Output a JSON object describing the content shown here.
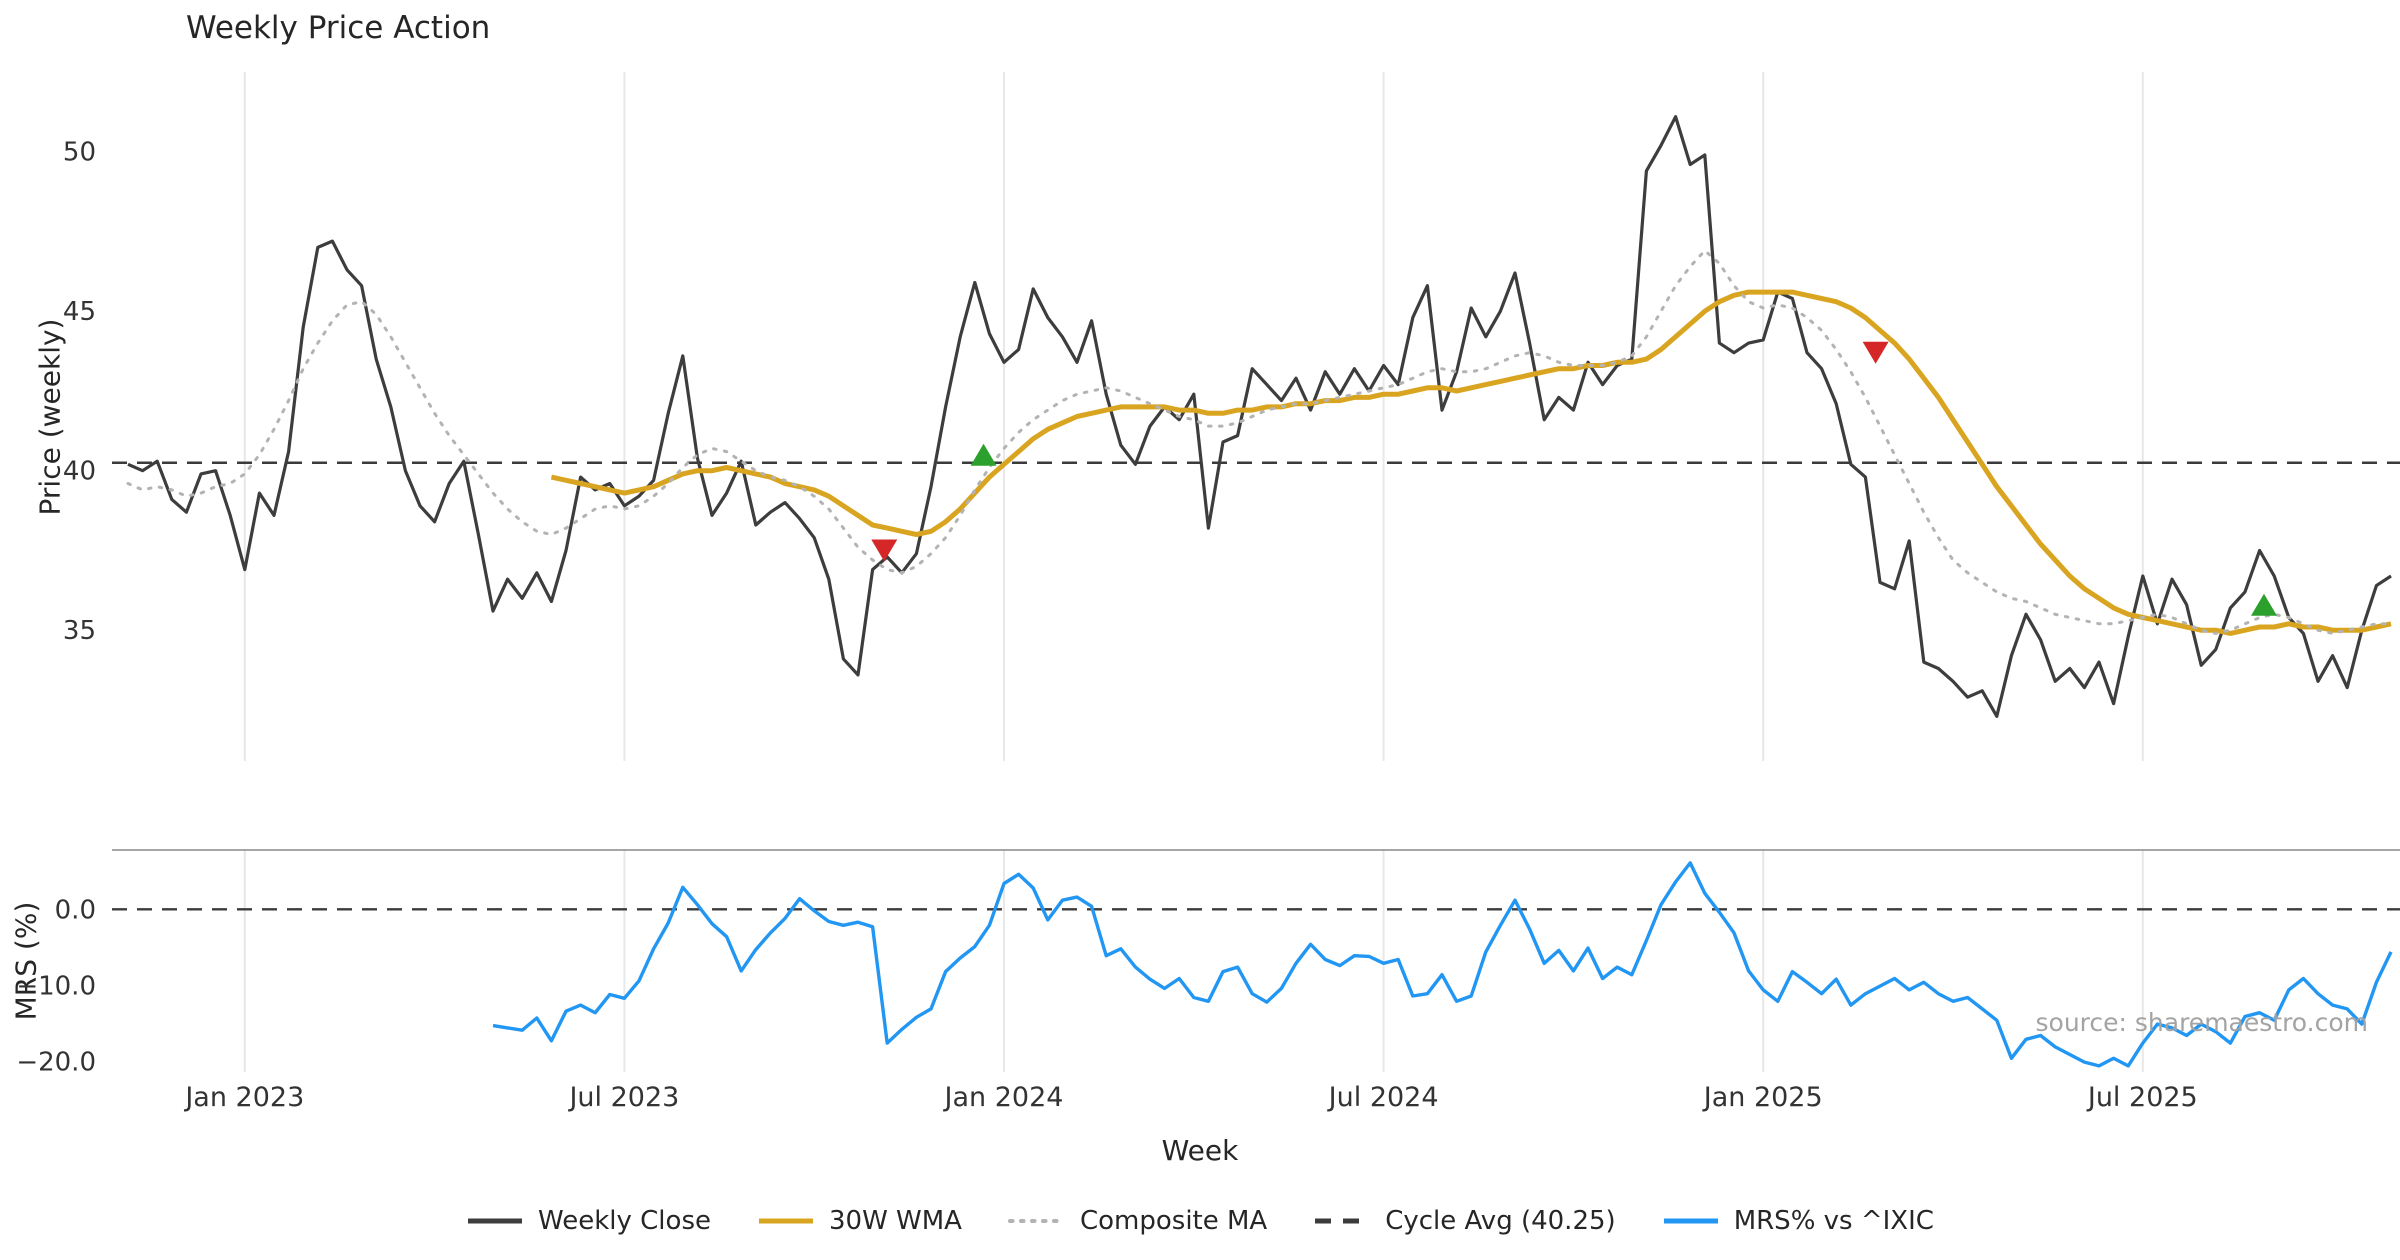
{
  "watermark": "source: sharemaestro.com",
  "chart_data": {
    "type": "line",
    "title": "Weekly Price Action",
    "xlabel": "Week",
    "grid": "vertical",
    "legend_position": "bottom-center",
    "xticks": [
      {
        "label": "Jan 2023",
        "week": 8
      },
      {
        "label": "Jul 2023",
        "week": 34
      },
      {
        "label": "Jan 2024",
        "week": 60
      },
      {
        "label": "Jul 2024",
        "week": 86
      },
      {
        "label": "Jan 2025",
        "week": 112
      },
      {
        "label": "Jul 2025",
        "week": 138
      }
    ],
    "panels": [
      {
        "name": "price",
        "ylabel": "Price (weekly)",
        "ylim": [
          30.9,
          52.5
        ],
        "yticks": [
          {
            "value": 35,
            "label": "35"
          },
          {
            "value": 40,
            "label": "40"
          },
          {
            "value": 45,
            "label": "45"
          },
          {
            "value": 50,
            "label": "50"
          }
        ],
        "ref_line": {
          "label": "Cycle Avg (40.25)",
          "value": 40.25,
          "style": "dashed",
          "color": "#3b3b3b"
        },
        "series": [
          {
            "name": "Weekly Close",
            "color": "#3d3d3d",
            "style": "solid",
            "width": 3.2,
            "start_week": 0,
            "values": [
              40.2,
              40.0,
              40.3,
              39.1,
              38.7,
              39.9,
              40.0,
              38.6,
              36.9,
              39.3,
              38.6,
              40.6,
              44.5,
              47.0,
              47.2,
              46.3,
              45.8,
              43.5,
              42.0,
              40.0,
              38.9,
              38.4,
              39.6,
              40.3,
              38.0,
              35.6,
              36.6,
              36.0,
              36.8,
              35.9,
              37.5,
              39.8,
              39.4,
              39.6,
              38.9,
              39.2,
              39.7,
              41.8,
              43.6,
              40.4,
              38.6,
              39.3,
              40.3,
              38.3,
              38.7,
              39.0,
              38.5,
              37.9,
              36.6,
              34.1,
              33.6,
              36.9,
              37.3,
              36.8,
              37.4,
              39.5,
              42.0,
              44.2,
              45.9,
              44.3,
              43.4,
              43.8,
              45.7,
              44.8,
              44.2,
              43.4,
              44.7,
              42.4,
              40.8,
              40.2,
              41.4,
              42.0,
              41.6,
              42.4,
              38.2,
              40.9,
              41.1,
              43.2,
              42.7,
              42.2,
              42.9,
              41.9,
              43.1,
              42.4,
              43.2,
              42.5,
              43.3,
              42.7,
              44.8,
              45.8,
              41.9,
              43.1,
              45.1,
              44.2,
              45.0,
              46.2,
              44.0,
              41.6,
              42.3,
              41.9,
              43.4,
              42.7,
              43.3,
              43.5,
              49.4,
              50.2,
              51.1,
              49.6,
              49.9,
              44.0,
              43.7,
              44.0,
              44.1,
              45.6,
              45.4,
              43.7,
              43.2,
              42.1,
              40.2,
              39.8,
              36.5,
              36.3,
              37.8,
              34.0,
              33.8,
              33.4,
              32.9,
              33.1,
              32.3,
              34.2,
              35.5,
              34.7,
              33.4,
              33.8,
              33.2,
              34.0,
              32.7,
              34.8,
              36.7,
              35.2,
              36.6,
              35.8,
              33.9,
              34.4,
              35.7,
              36.2,
              37.5,
              36.7,
              35.4,
              34.9,
              33.4,
              34.2,
              33.2,
              35.0,
              36.4,
              36.7
            ]
          },
          {
            "name": "30W WMA",
            "color": "#d9a521",
            "style": "solid",
            "width": 5,
            "start_week": 29,
            "values": [
              39.8,
              39.7,
              39.6,
              39.5,
              39.4,
              39.3,
              39.4,
              39.5,
              39.7,
              39.9,
              40.0,
              40.0,
              40.1,
              40.0,
              39.9,
              39.8,
              39.6,
              39.5,
              39.4,
              39.2,
              38.9,
              38.6,
              38.3,
              38.2,
              38.1,
              38.0,
              38.1,
              38.4,
              38.8,
              39.3,
              39.8,
              40.2,
              40.6,
              41.0,
              41.3,
              41.5,
              41.7,
              41.8,
              41.9,
              42.0,
              42.0,
              42.0,
              42.0,
              41.9,
              41.9,
              41.8,
              41.8,
              41.9,
              41.9,
              42.0,
              42.0,
              42.1,
              42.1,
              42.2,
              42.2,
              42.3,
              42.3,
              42.4,
              42.4,
              42.5,
              42.6,
              42.6,
              42.5,
              42.6,
              42.7,
              42.8,
              42.9,
              43.0,
              43.1,
              43.2,
              43.2,
              43.3,
              43.3,
              43.4,
              43.4,
              43.5,
              43.8,
              44.2,
              44.6,
              45.0,
              45.3,
              45.5,
              45.6,
              45.6,
              45.6,
              45.6,
              45.5,
              45.4,
              45.3,
              45.1,
              44.8,
              44.4,
              44.0,
              43.5,
              42.9,
              42.3,
              41.6,
              40.9,
              40.2,
              39.5,
              38.9,
              38.3,
              37.7,
              37.2,
              36.7,
              36.3,
              36.0,
              35.7,
              35.5,
              35.4,
              35.3,
              35.2,
              35.1,
              35.0,
              35.0,
              34.9,
              35.0,
              35.1,
              35.1,
              35.2,
              35.1,
              35.1,
              35.0,
              35.0,
              35.0,
              35.1,
              35.2
            ]
          },
          {
            "name": "Composite MA",
            "color": "#b3b3b3",
            "style": "dotted",
            "width": 3,
            "start_week": 0,
            "values": [
              39.6,
              39.4,
              39.5,
              39.4,
              39.2,
              39.3,
              39.5,
              39.6,
              39.9,
              40.5,
              41.3,
              42.2,
              43.2,
              44.0,
              44.7,
              45.2,
              45.3,
              44.9,
              44.2,
              43.4,
              42.6,
              41.8,
              41.1,
              40.5,
              39.9,
              39.3,
              38.8,
              38.4,
              38.1,
              38.0,
              38.2,
              38.5,
              38.8,
              38.9,
              38.8,
              38.9,
              39.2,
              39.6,
              40.1,
              40.5,
              40.7,
              40.6,
              40.3,
              40.0,
              39.8,
              39.7,
              39.5,
              39.2,
              38.8,
              38.2,
              37.6,
              37.2,
              36.9,
              36.8,
              37.0,
              37.4,
              37.9,
              38.6,
              39.4,
              40.1,
              40.7,
              41.2,
              41.6,
              41.9,
              42.2,
              42.4,
              42.5,
              42.6,
              42.5,
              42.3,
              42.1,
              41.9,
              41.7,
              41.6,
              41.4,
              41.4,
              41.5,
              41.7,
              41.9,
              42.0,
              42.1,
              42.1,
              42.2,
              42.3,
              42.4,
              42.5,
              42.6,
              42.7,
              42.9,
              43.1,
              43.2,
              43.1,
              43.1,
              43.2,
              43.4,
              43.6,
              43.7,
              43.6,
              43.4,
              43.3,
              43.3,
              43.3,
              43.4,
              43.6,
              44.2,
              45.0,
              45.8,
              46.4,
              46.9,
              46.5,
              45.8,
              45.3,
              45.1,
              45.2,
              45.1,
              44.8,
              44.4,
              43.8,
              43.1,
              42.3,
              41.4,
              40.5,
              39.6,
              38.7,
              37.9,
              37.2,
              36.8,
              36.5,
              36.2,
              36.0,
              35.9,
              35.7,
              35.5,
              35.4,
              35.3,
              35.2,
              35.2,
              35.3,
              35.4,
              35.5,
              35.4,
              35.2,
              35.0,
              34.9,
              35.0,
              35.2,
              35.4,
              35.5,
              35.4,
              35.2,
              35.0,
              34.9,
              35.0,
              35.1,
              35.2,
              35.2
            ]
          }
        ],
        "markers": [
          {
            "shape": "triangle-down",
            "color": "#d62728",
            "week": 51.8,
            "value": 37.5
          },
          {
            "shape": "triangle-up",
            "color": "#2ca02c",
            "week": 58.6,
            "value": 40.5
          },
          {
            "shape": "triangle-down",
            "color": "#d62728",
            "week": 119.7,
            "value": 43.7
          },
          {
            "shape": "triangle-up",
            "color": "#2ca02c",
            "week": 146.3,
            "value": 35.8
          }
        ]
      },
      {
        "name": "mrs",
        "ylabel": "MRS (%)",
        "ylim": [
          -21.4,
          7.8
        ],
        "yticks": [
          {
            "value": 0,
            "label": "0.0"
          },
          {
            "value": -10,
            "label": "−10.0"
          },
          {
            "value": -20,
            "label": "−20.0"
          }
        ],
        "ref_line": {
          "label": "zero line",
          "value": 0,
          "style": "dashed",
          "color": "#3b3b3b"
        },
        "series": [
          {
            "name": "MRS% vs ^IXIC",
            "color": "#2196f3",
            "style": "solid",
            "width": 3.4,
            "start_week": 25,
            "values": [
              -15.3,
              -15.6,
              -15.9,
              -14.3,
              -17.3,
              -13.4,
              -12.6,
              -13.6,
              -11.2,
              -11.7,
              -9.4,
              -5.2,
              -1.8,
              2.9,
              0.6,
              -1.9,
              -3.6,
              -8.1,
              -5.3,
              -3.1,
              -1.2,
              1.4,
              -0.2,
              -1.6,
              -2.1,
              -1.7,
              -2.3,
              -17.6,
              -15.8,
              -14.2,
              -13.1,
              -8.2,
              -6.4,
              -4.9,
              -2.1,
              3.4,
              4.6,
              2.8,
              -1.4,
              1.2,
              1.6,
              0.4,
              -6.1,
              -5.2,
              -7.6,
              -9.2,
              -10.4,
              -9.1,
              -11.6,
              -12.1,
              -8.2,
              -7.6,
              -11.1,
              -12.2,
              -10.4,
              -7.1,
              -4.6,
              -6.6,
              -7.4,
              -6.1,
              -6.2,
              -7.1,
              -6.6,
              -11.4,
              -11.1,
              -8.6,
              -12.1,
              -11.4,
              -5.6,
              -2.1,
              1.2,
              -2.6,
              -7.1,
              -5.4,
              -8.1,
              -5.1,
              -9.1,
              -7.6,
              -8.6,
              -4.1,
              0.6,
              3.6,
              6.1,
              2.1,
              -0.4,
              -3.1,
              -8.1,
              -10.6,
              -12.1,
              -8.2,
              -9.6,
              -11.1,
              -9.2,
              -12.6,
              -11.1,
              -10.1,
              -9.1,
              -10.6,
              -9.6,
              -11.1,
              -12.1,
              -11.6,
              -13.1,
              -14.6,
              -19.6,
              -17.1,
              -16.6,
              -18.1,
              -19.1,
              -20.1,
              -20.6,
              -19.6,
              -20.6,
              -17.6,
              -15.1,
              -15.6,
              -16.6,
              -15.1,
              -16.1,
              -17.6,
              -14.1,
              -13.6,
              -14.6,
              -10.6,
              -9.1,
              -11.1,
              -12.6,
              -13.1,
              -15.1,
              -9.6,
              -5.6
            ]
          }
        ],
        "markers": []
      }
    ],
    "legend": [
      {
        "label": "Weekly Close",
        "color": "#3d3d3d",
        "style": "solid"
      },
      {
        "label": "30W WMA",
        "color": "#d9a521",
        "style": "solid"
      },
      {
        "label": "Composite MA",
        "color": "#b3b3b3",
        "style": "dotted"
      },
      {
        "label": "Cycle Avg (40.25)",
        "color": "#3b3b3b",
        "style": "dashed"
      },
      {
        "label": "MRS% vs ^IXIC",
        "color": "#2196f3",
        "style": "solid"
      }
    ]
  }
}
